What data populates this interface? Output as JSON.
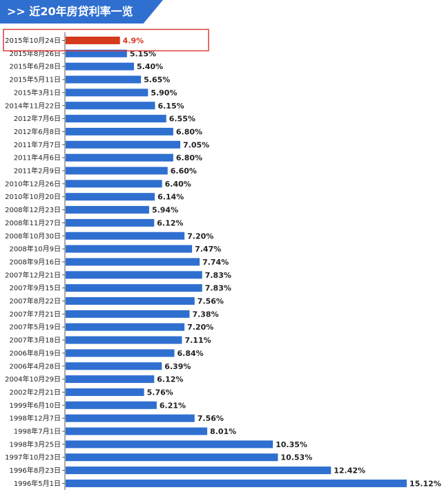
{
  "header": {
    "title": ">> 近20年房贷利率一览"
  },
  "colors": {
    "banner": "#2f6fd0",
    "bar": "#2f6fd0",
    "highlight_bar": "#d43a1c",
    "highlight_box": "#e03b3b"
  },
  "chart_data": {
    "type": "bar",
    "orientation": "horizontal",
    "title": "近20年房贷利率一览",
    "categories": [
      "2015年10月24日",
      "2015年8月26日",
      "2015年6月28日",
      "2015年5月11日",
      "2015年3月1日",
      "2014年11月22日",
      "2012年7月6日",
      "2012年6月8日",
      "2011年7月7日",
      "2011年4月6日",
      "2011年2月9日",
      "2010年12月26日",
      "2010年10月20日",
      "2008年12月23日",
      "2008年11月27日",
      "2008年10月30日",
      "2008年10月9日",
      "2008年9月16日",
      "2007年12月21日",
      "2007年9月15日",
      "2007年8月22日",
      "2007年7月21日",
      "2007年5月19日",
      "2007年3月18日",
      "2006年8月19日",
      "2006年4月28日",
      "2004年10月29日",
      "2002年2月21日",
      "1999年6月10日",
      "1998年12月7日",
      "1998年7月1日",
      "1998年3月25日",
      "1997年10月23日",
      "1996年8月23日",
      "1996年5月1日"
    ],
    "values": [
      4.9,
      5.15,
      5.4,
      5.65,
      5.9,
      6.15,
      6.55,
      6.8,
      7.05,
      6.8,
      6.6,
      6.4,
      6.14,
      5.94,
      6.12,
      7.2,
      7.47,
      7.74,
      7.83,
      7.83,
      7.56,
      7.38,
      7.2,
      7.11,
      6.84,
      6.39,
      6.12,
      5.76,
      6.21,
      7.56,
      8.01,
      10.35,
      10.53,
      12.42,
      15.12
    ],
    "value_labels": [
      "4.9%",
      "5.15%",
      "5.40%",
      "5.65%",
      "5.90%",
      "6.15%",
      "6.55%",
      "6.80%",
      "7.05%",
      "6.80%",
      "6.60%",
      "6.40%",
      "6.14%",
      "5.94%",
      "6.12%",
      "7.20%",
      "7.47%",
      "7.74%",
      "7.83%",
      "7.83%",
      "7.56%",
      "7.38%",
      "7.20%",
      "7.11%",
      "6.84%",
      "6.39%",
      "6.12%",
      "5.76%",
      "6.21%",
      "7.56%",
      "8.01%",
      "10.35%",
      "10.53%",
      "12.42%",
      "15.12%"
    ],
    "highlight_index": 0,
    "xlabel": "",
    "ylabel": "",
    "grid": false,
    "legend": "none"
  }
}
